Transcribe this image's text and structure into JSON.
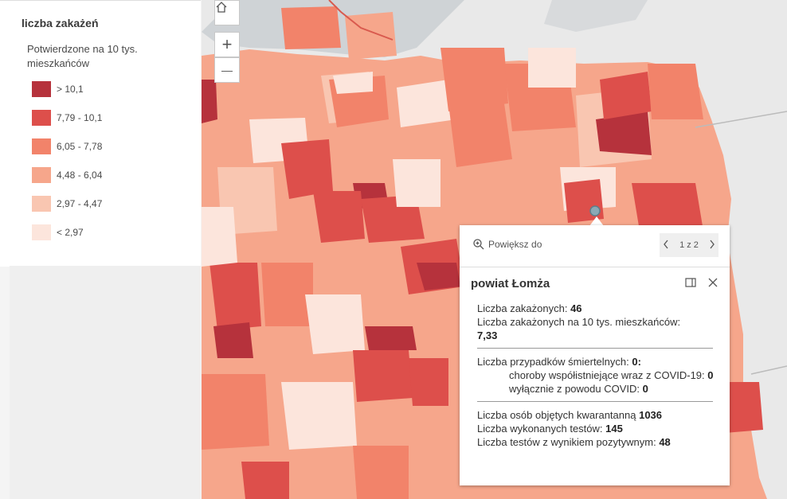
{
  "legend": {
    "title": "liczba zakażeń",
    "subtitle": "Potwierdzone na 10 tys. mieszkańców",
    "classes": [
      {
        "label": "> 10,1",
        "color": "#b6323c"
      },
      {
        "label": "7,79 - 10,1",
        "color": "#dd4f4b"
      },
      {
        "label": "6,05 - 7,78",
        "color": "#f2836a"
      },
      {
        "label": "4,48 - 6,04",
        "color": "#f6a68b"
      },
      {
        "label": "2,97 - 4,47",
        "color": "#f9c6b1"
      },
      {
        "label": "< 2,97",
        "color": "#fce5dc"
      }
    ]
  },
  "map_controls": {
    "home": "home-icon",
    "zoom_in": "+",
    "zoom_out": "—"
  },
  "popup": {
    "zoom_to": "Powiększ do",
    "pager": "1 z 2",
    "title": "powiat Łomża",
    "infected_label": "Liczba zakażonych:",
    "infected_value": "46",
    "per10k_label": "Liczba zakażonych na 10 tys. mieszkańców:",
    "per10k_value": "7,33",
    "deaths_label": "Liczba przypadków śmiertelnych:",
    "deaths_value": "0:",
    "comorb_label": "choroby współistniejące wraz z COVID-19:",
    "comorb_value": "0",
    "covid_only_label": "wyłącznie z powodu COVID:",
    "covid_only_value": "0",
    "quarantine_label": "Liczba osób objętych kwarantanną",
    "quarantine_value": "1036",
    "tests_label": "Liczba wykonanych testów:",
    "tests_value": "145",
    "positive_label": "Liczba testów z wynikiem pozytywnym:",
    "positive_value": "48"
  }
}
